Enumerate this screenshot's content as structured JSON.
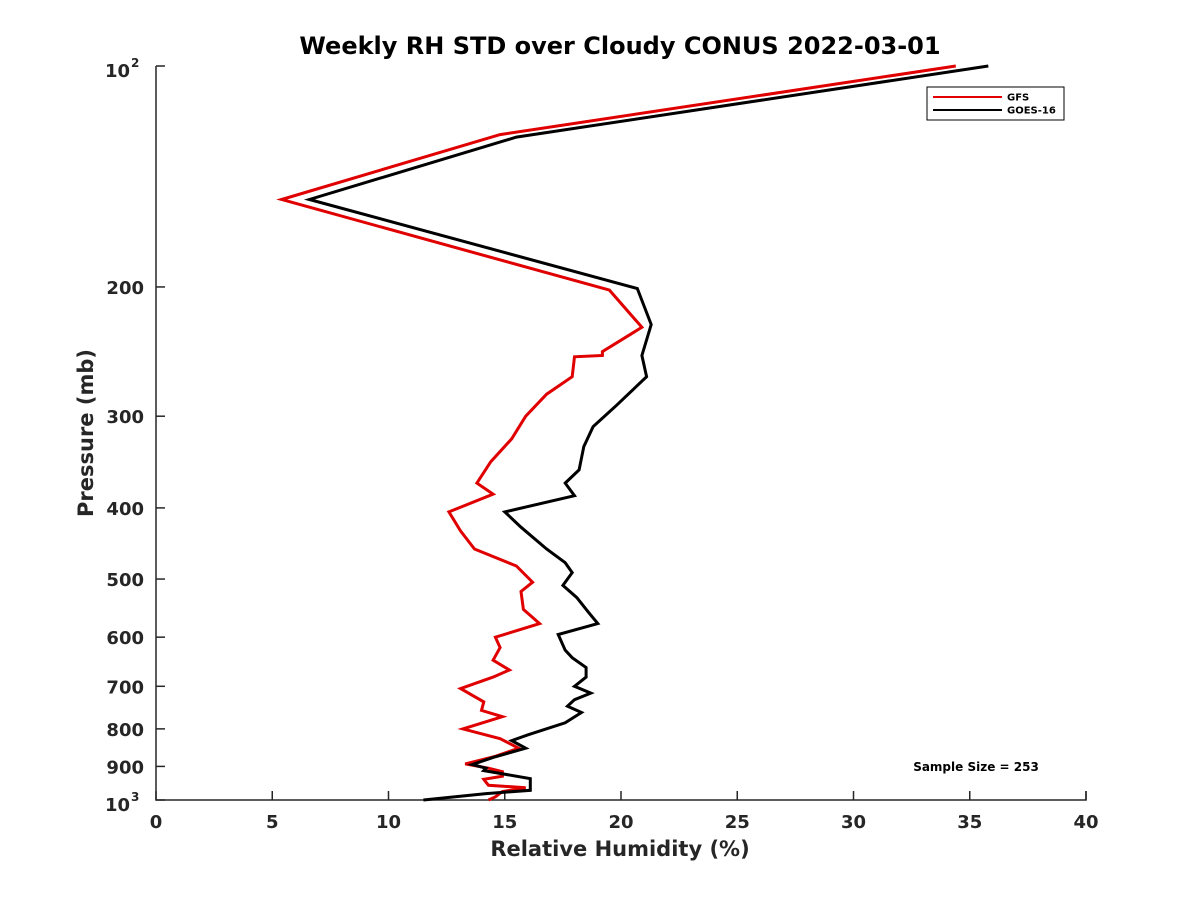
{
  "chart_data": {
    "type": "line",
    "title": "Weekly RH STD over Cloudy CONUS 2022-03-01",
    "xlabel": "Relative Humidity (%)",
    "ylabel": "Pressure (mb)",
    "xlim": [
      0,
      40
    ],
    "ylim": [
      100,
      1000
    ],
    "yscale": "log",
    "y_reversed": true,
    "grid": false,
    "x_ticks": [
      {
        "value": 0,
        "label": "0"
      },
      {
        "value": 5,
        "label": "5"
      },
      {
        "value": 10,
        "label": "10"
      },
      {
        "value": 15,
        "label": "15"
      },
      {
        "value": 20,
        "label": "20"
      },
      {
        "value": 25,
        "label": "25"
      },
      {
        "value": 30,
        "label": "30"
      },
      {
        "value": 35,
        "label": "35"
      },
      {
        "value": 40,
        "label": "40"
      }
    ],
    "y_ticks": [
      {
        "value": 100,
        "label": "10",
        "sup": "2"
      },
      {
        "value": 200,
        "label": "200"
      },
      {
        "value": 300,
        "label": "300"
      },
      {
        "value": 400,
        "label": "400"
      },
      {
        "value": 500,
        "label": "500"
      },
      {
        "value": 600,
        "label": "600"
      },
      {
        "value": 700,
        "label": "700"
      },
      {
        "value": 800,
        "label": "800"
      },
      {
        "value": 900,
        "label": "900"
      },
      {
        "value": 1000,
        "label": "10",
        "sup": "3"
      }
    ],
    "legend_position": "top-right",
    "annotation": "Sample Size = 253",
    "series": [
      {
        "name": "GFS",
        "color": "#e00000",
        "points": [
          [
            34.4,
            100
          ],
          [
            14.8,
            124
          ],
          [
            5.4,
            152
          ],
          [
            19.5,
            202
          ],
          [
            20.9,
            227
          ],
          [
            19.2,
            245
          ],
          [
            19.2,
            248
          ],
          [
            18.0,
            249
          ],
          [
            17.9,
            265
          ],
          [
            16.8,
            280
          ],
          [
            15.9,
            300
          ],
          [
            15.3,
            322
          ],
          [
            14.4,
            346
          ],
          [
            13.8,
            370
          ],
          [
            14.5,
            383
          ],
          [
            12.6,
            405
          ],
          [
            13.1,
            430
          ],
          [
            13.7,
            455
          ],
          [
            15.5,
            480
          ],
          [
            16.2,
            505
          ],
          [
            15.7,
            520
          ],
          [
            15.8,
            550
          ],
          [
            16.5,
            575
          ],
          [
            14.6,
            600
          ],
          [
            14.8,
            620
          ],
          [
            14.5,
            645
          ],
          [
            15.2,
            665
          ],
          [
            14.5,
            680
          ],
          [
            13.1,
            705
          ],
          [
            14.1,
            735
          ],
          [
            14.0,
            755
          ],
          [
            14.9,
            770
          ],
          [
            13.2,
            800
          ],
          [
            14.8,
            825
          ],
          [
            15.6,
            850
          ],
          [
            14.6,
            872
          ],
          [
            13.3,
            893
          ],
          [
            14.3,
            905
          ],
          [
            14.9,
            915
          ],
          [
            14.9,
            928
          ],
          [
            14.1,
            937
          ],
          [
            14.2,
            946
          ],
          [
            14.3,
            955
          ],
          [
            15.9,
            962
          ],
          [
            14.9,
            974
          ],
          [
            14.6,
            990
          ],
          [
            14.3,
            1000
          ]
        ]
      },
      {
        "name": "GOES-16",
        "color": "#000000",
        "points": [
          [
            35.8,
            100
          ],
          [
            15.5,
            125
          ],
          [
            6.6,
            152
          ],
          [
            20.7,
            201
          ],
          [
            21.3,
            225
          ],
          [
            20.9,
            248
          ],
          [
            21.1,
            265
          ],
          [
            19.8,
            290
          ],
          [
            18.8,
            310
          ],
          [
            18.4,
            330
          ],
          [
            18.2,
            355
          ],
          [
            17.6,
            370
          ],
          [
            18.0,
            385
          ],
          [
            15.0,
            405
          ],
          [
            15.7,
            425
          ],
          [
            16.8,
            455
          ],
          [
            17.6,
            475
          ],
          [
            17.9,
            490
          ],
          [
            17.5,
            510
          ],
          [
            18.1,
            530
          ],
          [
            18.6,
            555
          ],
          [
            19.0,
            575
          ],
          [
            17.3,
            595
          ],
          [
            17.6,
            625
          ],
          [
            17.9,
            640
          ],
          [
            18.5,
            660
          ],
          [
            18.5,
            680
          ],
          [
            18.0,
            700
          ],
          [
            18.7,
            715
          ],
          [
            18.0,
            730
          ],
          [
            17.7,
            745
          ],
          [
            18.3,
            760
          ],
          [
            17.6,
            785
          ],
          [
            16.0,
            815
          ],
          [
            15.3,
            830
          ],
          [
            15.9,
            850
          ],
          [
            14.5,
            875
          ],
          [
            13.6,
            895
          ],
          [
            14.2,
            905
          ],
          [
            14.1,
            912
          ],
          [
            16.1,
            935
          ],
          [
            16.1,
            970
          ],
          [
            14.2,
            980
          ],
          [
            11.5,
            1000
          ]
        ]
      }
    ]
  }
}
